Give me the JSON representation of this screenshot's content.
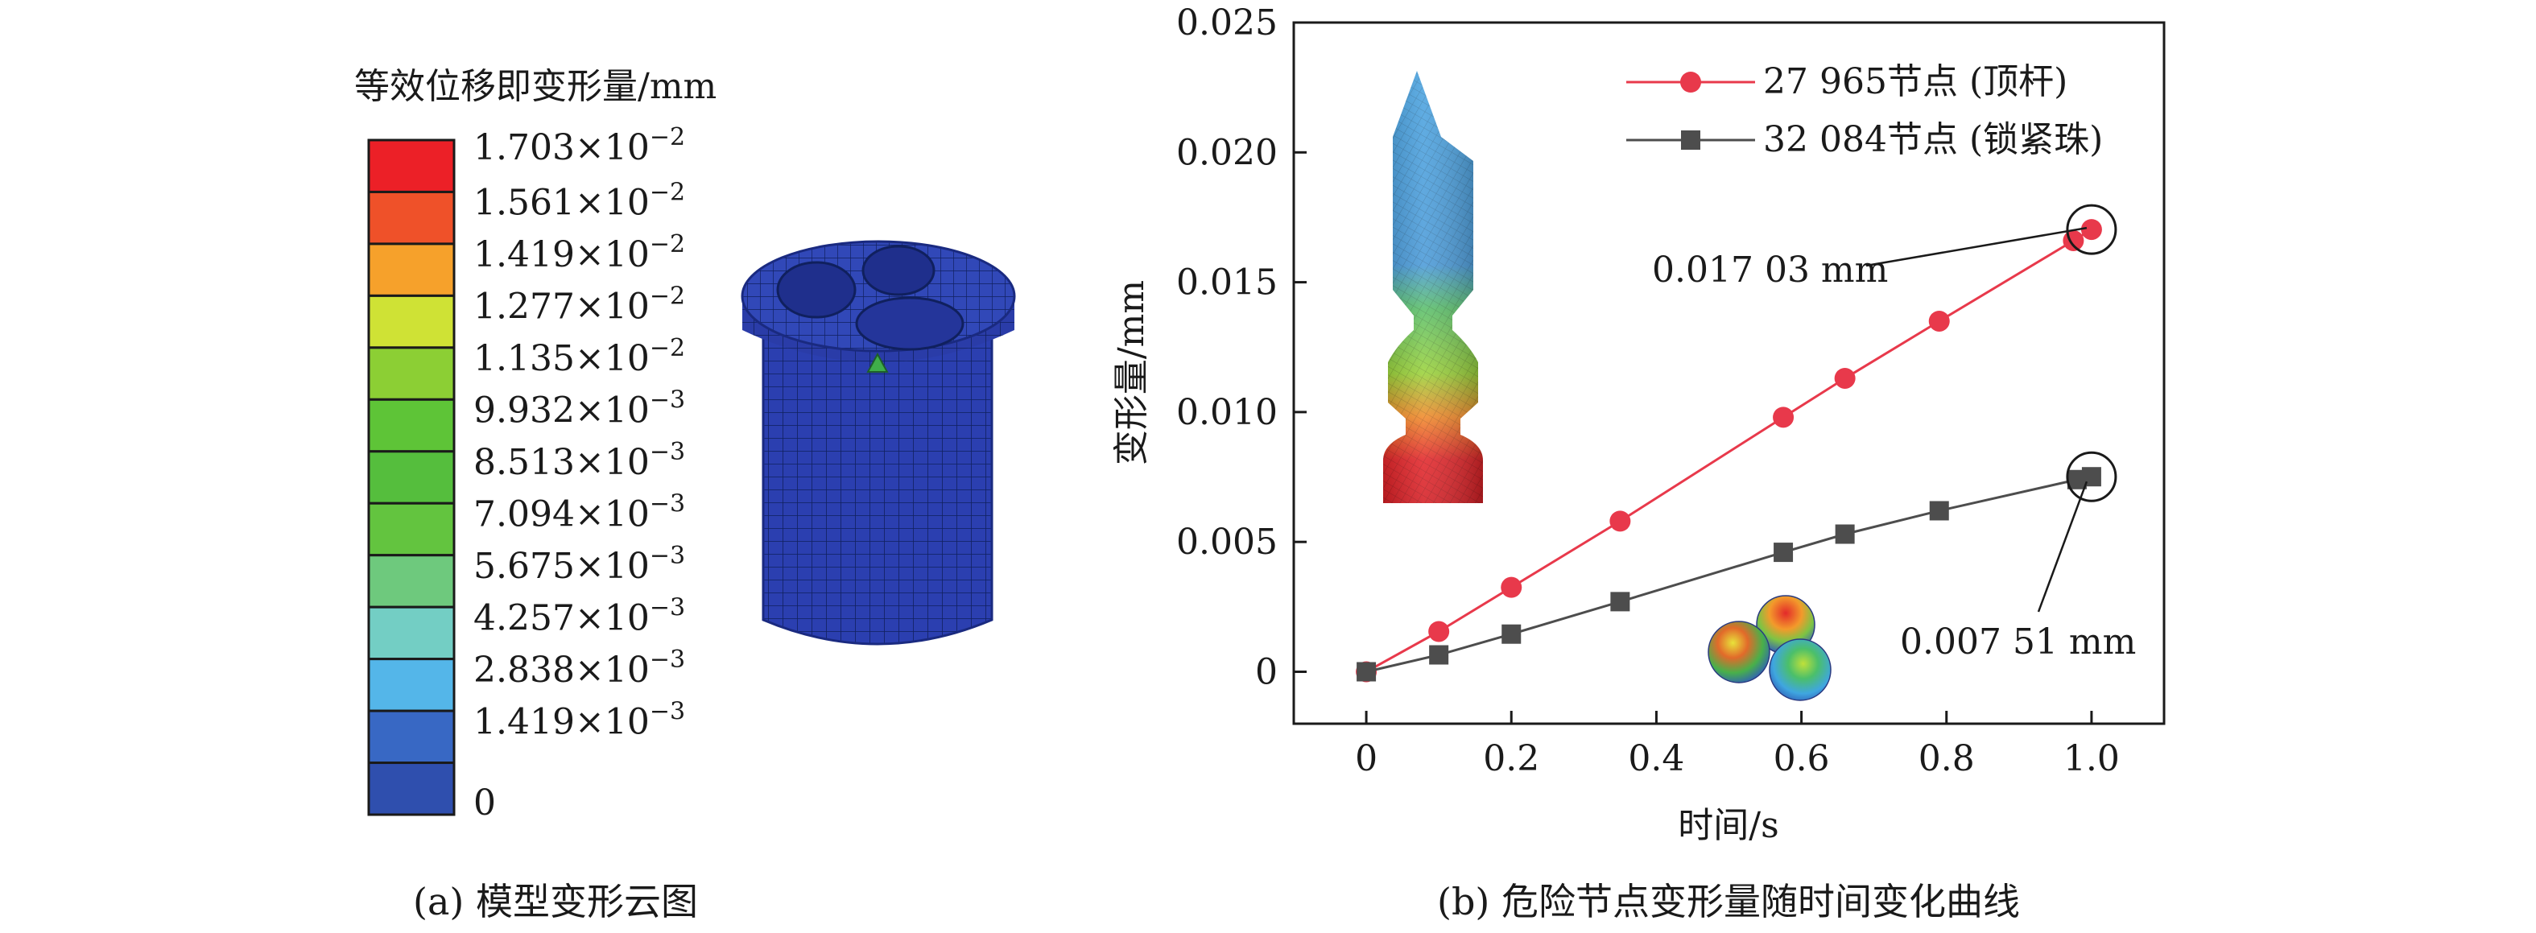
{
  "panel_a": {
    "legend_title": "等效位移即变形量/mm",
    "colorbar": [
      {
        "label": "1.703×10",
        "exp": "−2",
        "color": "#ec2027"
      },
      {
        "label": "1.561×10",
        "exp": "−2",
        "color": "#ef5129"
      },
      {
        "label": "1.419×10",
        "exp": "−2",
        "color": "#f6a12b"
      },
      {
        "label": "1.277×10",
        "exp": "−2",
        "color": "#cfe235"
      },
      {
        "label": "1.135×10",
        "exp": "−2",
        "color": "#8ccf34"
      },
      {
        "label": "9.932×10",
        "exp": "−3",
        "color": "#5ec437"
      },
      {
        "label": "8.513×10",
        "exp": "−3",
        "color": "#55be3d"
      },
      {
        "label": "7.094×10",
        "exp": "−3",
        "color": "#63c43f"
      },
      {
        "label": "5.675×10",
        "exp": "−3",
        "color": "#6ec97d"
      },
      {
        "label": "4.257×10",
        "exp": "−3",
        "color": "#73cec4"
      },
      {
        "label": "2.838×10",
        "exp": "−3",
        "color": "#54b6e9"
      },
      {
        "label": "1.419×10",
        "exp": "−3",
        "color": "#3868c4"
      },
      {
        "label": "0",
        "exp": "",
        "color": "#2f4fae"
      }
    ],
    "caption": "(a) 模型变形云图",
    "model_color": "#2b3fb0"
  },
  "chart_data": {
    "type": "line",
    "title": "",
    "xlabel": "时间/s",
    "ylabel": "变形量/mm",
    "xlim": [
      -0.1,
      1.1
    ],
    "ylim": [
      -0.002,
      0.025
    ],
    "xticks": [
      0,
      0.2,
      0.4,
      0.6,
      0.8,
      1.0
    ],
    "xtick_labels": [
      "0",
      "0.2",
      "0.4",
      "0.6",
      "0.8",
      "1.0"
    ],
    "yticks": [
      0,
      0.005,
      0.01,
      0.015,
      0.02,
      0.025
    ],
    "ytick_labels": [
      "0",
      "0.005",
      "0.010",
      "0.015",
      "0.020",
      "0.025"
    ],
    "grid": false,
    "legend_position": "top-right",
    "series": [
      {
        "name": "27 965节点 (顶杆)",
        "color": "#e8394b",
        "marker": "circle",
        "x": [
          0,
          0.1,
          0.2,
          0.35,
          0.575,
          0.66,
          0.79,
          0.975,
          1.0
        ],
        "y": [
          0,
          0.00155,
          0.00325,
          0.0058,
          0.0098,
          0.0113,
          0.0135,
          0.0166,
          0.01703
        ]
      },
      {
        "name": "32 084节点 (锁紧珠)",
        "color": "#4d4d4d",
        "marker": "square",
        "x": [
          0,
          0.1,
          0.2,
          0.35,
          0.575,
          0.66,
          0.79,
          0.98,
          1.0
        ],
        "y": [
          0,
          0.00065,
          0.00145,
          0.0027,
          0.0046,
          0.0053,
          0.0062,
          0.0074,
          0.00751
        ]
      }
    ],
    "annotations": [
      {
        "text": "0.017 03 mm",
        "x": 1.0,
        "y": 0.01703
      },
      {
        "text": "0.007 51 mm",
        "x": 1.0,
        "y": 0.00751
      }
    ],
    "caption": "(b) 危险节点变形量随时间变化曲线"
  }
}
